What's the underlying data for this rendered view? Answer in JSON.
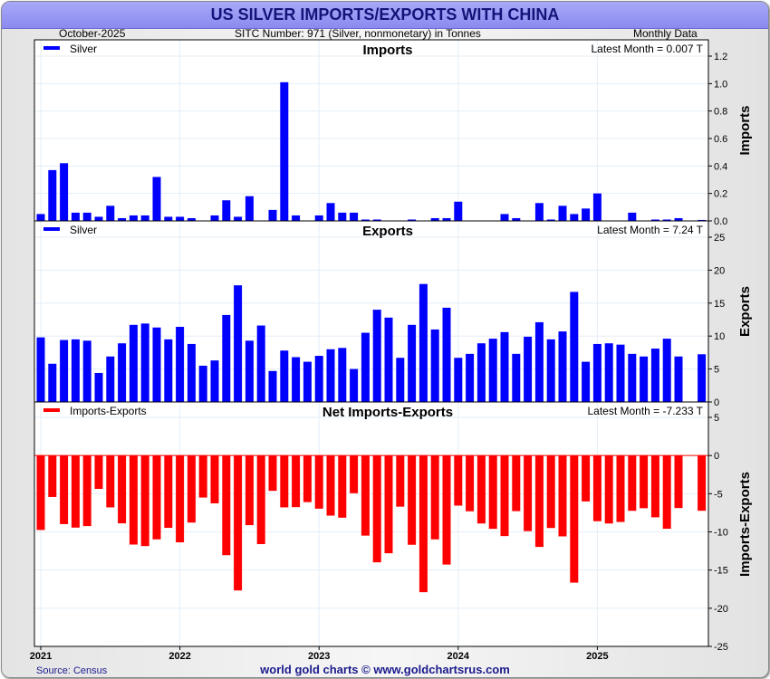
{
  "header": {
    "title": "US SILVER IMPORTS/EXPORTS WITH CHINA",
    "date_label": "October-2025",
    "sitc_label": "SITC Number: 971 (Silver, nonmonetary) in Tonnes",
    "frequency_label": "Monthly Data"
  },
  "footer": {
    "source": "Source: Census",
    "credit": "world gold charts © www.goldchartsrus.com"
  },
  "colors": {
    "imports": "#0000ff",
    "exports": "#0000ff",
    "net": "#ff0000",
    "title_bg": "#9a9af4",
    "title_text": "#13137a"
  },
  "chart_data": [
    {
      "type": "bar",
      "title": "Imports",
      "ylabel": "Imports",
      "legend": "Silver",
      "legend_position": "top-left",
      "latest_label": "Latest Month = 0.007 T",
      "ylim": [
        0,
        1.2
      ],
      "yticks": [
        "0.0",
        "0.2",
        "0.4",
        "0.6",
        "0.8",
        "1.0",
        "1.2"
      ],
      "grid": true,
      "values": [
        0.05,
        0.37,
        0.42,
        0.06,
        0.06,
        0.03,
        0.11,
        0.02,
        0.04,
        0.04,
        0.32,
        0.03,
        0.03,
        0.02,
        0,
        0.04,
        0.15,
        0.03,
        0.18,
        0,
        0.08,
        1.01,
        0.04,
        0,
        0.04,
        0.13,
        0.06,
        0.06,
        0.01,
        0.01,
        0,
        0,
        0.01,
        0,
        0.02,
        0.02,
        0.14,
        0,
        0,
        0,
        0.05,
        0.02,
        0,
        0.13,
        0.01,
        0.11,
        0.05,
        0.09,
        0.2,
        0,
        0,
        0.06,
        0,
        0.01,
        0.01,
        0.02,
        0,
        0.007
      ]
    },
    {
      "type": "bar",
      "title": "Exports",
      "ylabel": "Exports",
      "legend": "Silver",
      "legend_position": "top-left",
      "latest_label": "Latest Month = 7.24 T",
      "ylim": [
        0,
        25
      ],
      "yticks": [
        "0",
        "5",
        "10",
        "15",
        "20",
        "25"
      ],
      "grid": true,
      "values": [
        9.8,
        5.8,
        9.4,
        9.5,
        9.3,
        4.4,
        6.9,
        8.9,
        11.7,
        11.9,
        11.3,
        9.5,
        11.4,
        8.8,
        5.5,
        6.3,
        13.2,
        17.7,
        9.3,
        11.6,
        4.7,
        7.8,
        6.8,
        6.1,
        7.0,
        8.0,
        8.2,
        5.0,
        10.5,
        14.0,
        12.8,
        6.7,
        11.7,
        17.9,
        11.0,
        14.3,
        6.7,
        7.3,
        8.9,
        9.6,
        10.6,
        7.3,
        9.9,
        12.1,
        9.5,
        10.7,
        16.7,
        6.1,
        8.8,
        8.9,
        8.7,
        7.3,
        6.9,
        8.1,
        9.6,
        6.9,
        0,
        7.24
      ]
    },
    {
      "type": "bar",
      "title": "Net Imports-Exports",
      "ylabel": "Imports-Exports",
      "legend": "Imports-Exports",
      "legend_position": "top-left",
      "latest_label": "Latest Month = -7.233 T",
      "ylim": [
        -25,
        5
      ],
      "yticks": [
        "-25",
        "-20",
        "-15",
        "-10",
        "-5",
        "0",
        "5"
      ],
      "grid": true,
      "values": [
        -9.75,
        -5.43,
        -8.98,
        -9.44,
        -9.24,
        -4.37,
        -6.79,
        -8.88,
        -11.66,
        -11.86,
        -10.98,
        -9.47,
        -11.37,
        -8.78,
        -5.5,
        -6.26,
        -13.05,
        -17.67,
        -9.12,
        -11.6,
        -4.62,
        -6.79,
        -6.76,
        -6.1,
        -6.96,
        -7.87,
        -8.14,
        -4.94,
        -10.49,
        -13.99,
        -12.8,
        -6.7,
        -11.69,
        -17.9,
        -10.98,
        -14.28,
        -6.56,
        -7.3,
        -8.9,
        -9.6,
        -10.55,
        -7.28,
        -9.9,
        -11.97,
        -9.49,
        -10.59,
        -16.65,
        -6.01,
        -8.6,
        -8.9,
        -8.7,
        -7.24,
        -6.9,
        -8.09,
        -9.59,
        -6.88,
        0,
        -7.233
      ]
    },
    {
      "x_axis": {
        "start": "2021-01",
        "end": "2025-10",
        "tick_labels": [
          "2021",
          "2022",
          "2023",
          "2024",
          "2025"
        ]
      }
    }
  ]
}
